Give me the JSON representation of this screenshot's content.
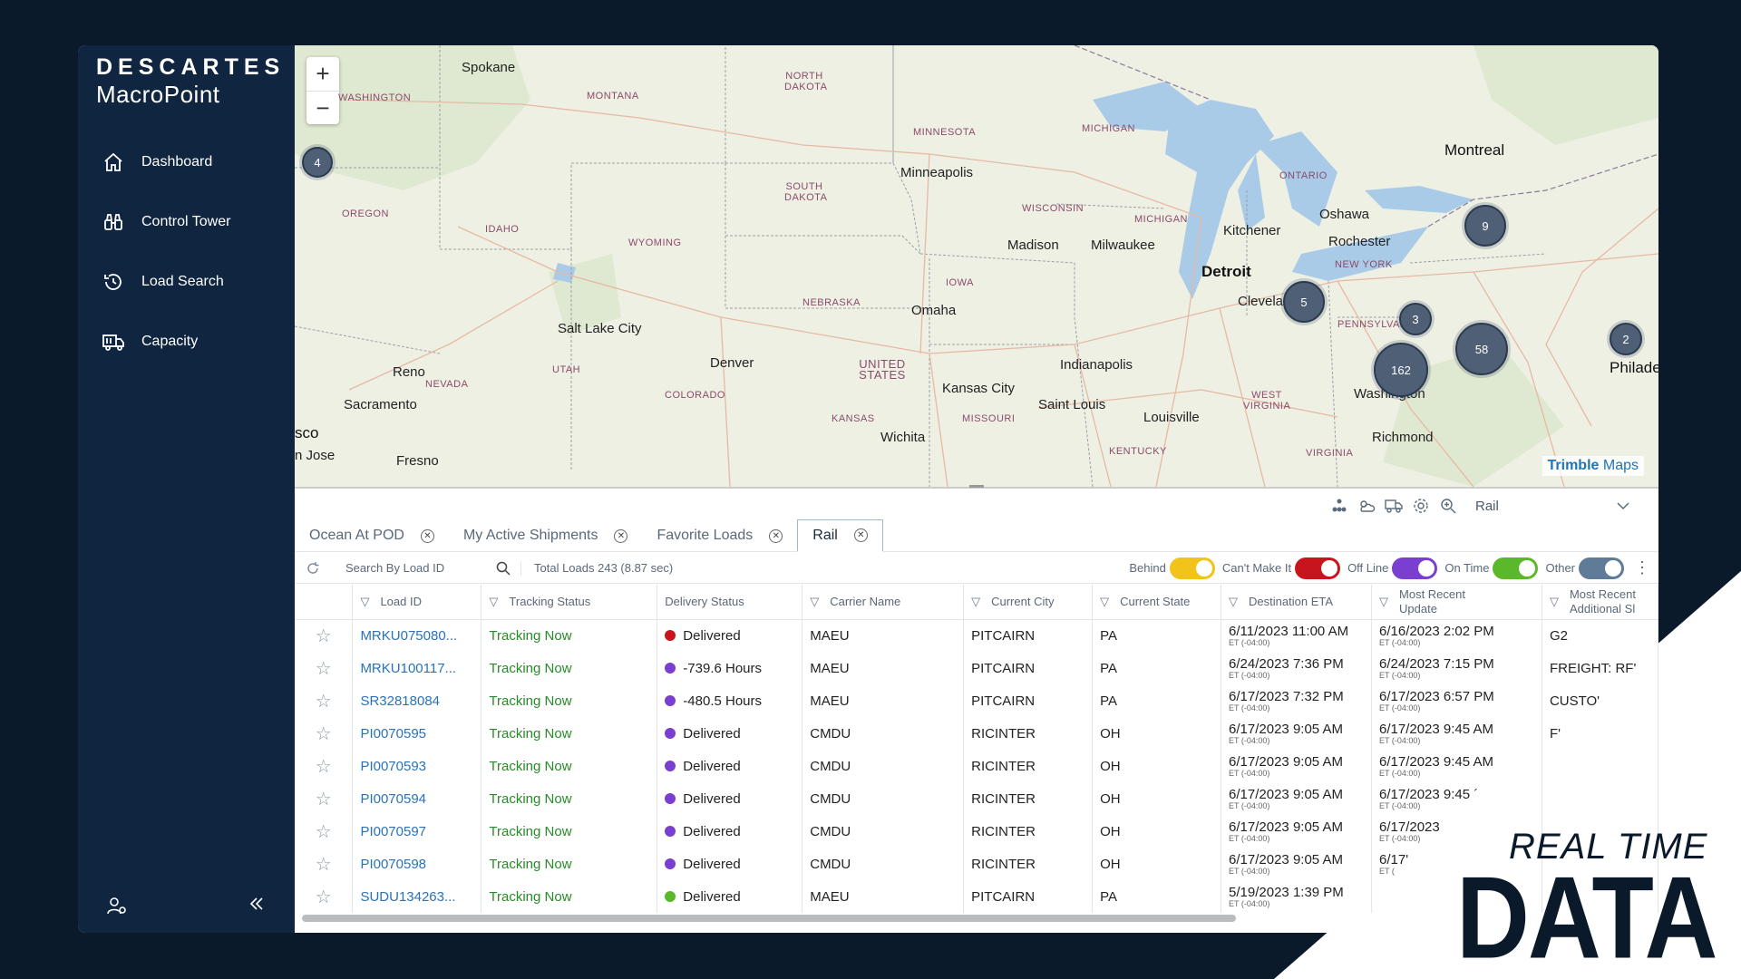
{
  "brand": {
    "name_top": "DESCARTES",
    "name_bottom": "MacroPoint"
  },
  "nav": [
    {
      "label": "Dashboard",
      "icon": "home-icon"
    },
    {
      "label": "Control Tower",
      "icon": "binoculars-icon"
    },
    {
      "label": "Load Search",
      "icon": "history-icon"
    },
    {
      "label": "Capacity",
      "icon": "truck-icon"
    }
  ],
  "map": {
    "zoom_in": "+",
    "zoom_out": "−",
    "attribution_brand": "Trimble",
    "attribution_suffix": " Maps",
    "state_labels": [
      "WASHINGTON",
      "MONTANA",
      "NORTH DAKOTA",
      "MINNESOTA",
      "SOUTH DAKOTA",
      "OREGON",
      "IDAHO",
      "WYOMING",
      "WISCONSIN",
      "MICHIGAN",
      "MICHIGAN",
      "ONTARIO",
      "NEBRASKA",
      "IOWA",
      "NEVADA",
      "UTAH",
      "COLORADO",
      "UNITED STATES",
      "KANSAS",
      "MISSOURI",
      "PENNSYLVANIA",
      "NEW YORK",
      "WEST VIRGINIA",
      "KENTUCKY",
      "VIRGINIA"
    ],
    "city_labels": [
      "Spokane",
      "Minneapolis",
      "Madison",
      "Milwaukee",
      "Detroit",
      "Kitchener",
      "Oshawa",
      "Rochester",
      "Montreal",
      "Cleveland",
      "Omaha",
      "Salt Lake City",
      "Denver",
      "Reno",
      "Sacramento",
      "Kansas City",
      "Indianapolis",
      "Saint Louis",
      "Louisville",
      "Wichita",
      "Washington",
      "Richmond",
      "Philade",
      "Fresno",
      "sco",
      "n Jose"
    ],
    "clusters": [
      "4",
      "9",
      "5",
      "3",
      "58",
      "162",
      "2"
    ]
  },
  "toolbar": {
    "view_label": "Rail"
  },
  "tabs": [
    {
      "label": "Ocean At POD",
      "active": false
    },
    {
      "label": "My Active Shipments",
      "active": false
    },
    {
      "label": "Favorite Loads",
      "active": false
    },
    {
      "label": "Rail",
      "active": true
    }
  ],
  "filters": {
    "search_placeholder": "Search By Load ID",
    "total_text": "Total Loads 243 (8.87 sec)",
    "toggles": [
      {
        "label": "Behind",
        "color": "#f2c318"
      },
      {
        "label": "Can't Make It",
        "color": "#c8141c"
      },
      {
        "label": "Off Line",
        "color": "#7a3fd0"
      },
      {
        "label": "On Time",
        "color": "#5ab82a"
      },
      {
        "label": "Other",
        "color": "#5f7b97"
      }
    ]
  },
  "columns": [
    "Load ID",
    "Tracking Status",
    "Delivery Status",
    "Carrier Name",
    "Current City",
    "Current State",
    "Destination ETA",
    "Most Recent Update",
    "Most Recent Additional Sl"
  ],
  "rows": [
    {
      "load_id": "MRKU075080...",
      "tracking": "Tracking Now",
      "delivery": "Delivered",
      "dot": "#c8141c",
      "carrier": "MAEU",
      "city": "PITCAIRN",
      "state": "PA",
      "eta": "6/11/2023  11:00 AM",
      "eta_tz": "ET (-04:00)",
      "update": "6/16/2023  2:02 PM",
      "update_tz": "ET (-04:00)",
      "extra": "G2"
    },
    {
      "load_id": "MRKU100117...",
      "tracking": "Tracking Now",
      "delivery": "-739.6 Hours",
      "dot": "#7a3fd0",
      "carrier": "MAEU",
      "city": "PITCAIRN",
      "state": "PA",
      "eta": "6/24/2023  7:36 PM",
      "eta_tz": "ET (-04:00)",
      "update": "6/24/2023  7:15 PM",
      "update_tz": "ET (-04:00)",
      "extra": "FREIGHT: RF'"
    },
    {
      "load_id": "SR32818084",
      "tracking": "Tracking Now",
      "delivery": "-480.5 Hours",
      "dot": "#7a3fd0",
      "carrier": "MAEU",
      "city": "PITCAIRN",
      "state": "PA",
      "eta": "6/17/2023  7:32 PM",
      "eta_tz": "ET (-04:00)",
      "update": "6/17/2023  6:57 PM",
      "update_tz": "ET (-04:00)",
      "extra": "CUSTO'"
    },
    {
      "load_id": "PI0070595",
      "tracking": "Tracking Now",
      "delivery": "Delivered",
      "dot": "#7a3fd0",
      "carrier": "CMDU",
      "city": "RICINTER",
      "state": "OH",
      "eta": "6/17/2023  9:05 AM",
      "eta_tz": "ET (-04:00)",
      "update": "6/17/2023  9:45 AM",
      "update_tz": "ET (-04:00)",
      "extra": "F'"
    },
    {
      "load_id": "PI0070593",
      "tracking": "Tracking Now",
      "delivery": "Delivered",
      "dot": "#7a3fd0",
      "carrier": "CMDU",
      "city": "RICINTER",
      "state": "OH",
      "eta": "6/17/2023  9:05 AM",
      "eta_tz": "ET (-04:00)",
      "update": "6/17/2023  9:45 AM",
      "update_tz": "ET (-04:00)",
      "extra": ""
    },
    {
      "load_id": "PI0070594",
      "tracking": "Tracking Now",
      "delivery": "Delivered",
      "dot": "#7a3fd0",
      "carrier": "CMDU",
      "city": "RICINTER",
      "state": "OH",
      "eta": "6/17/2023  9:05 AM",
      "eta_tz": "ET (-04:00)",
      "update": "6/17/2023  9:45 ´",
      "update_tz": "ET (-04:00)",
      "extra": ""
    },
    {
      "load_id": "PI0070597",
      "tracking": "Tracking Now",
      "delivery": "Delivered",
      "dot": "#7a3fd0",
      "carrier": "CMDU",
      "city": "RICINTER",
      "state": "OH",
      "eta": "6/17/2023  9:05 AM",
      "eta_tz": "ET (-04:00)",
      "update": "6/17/2023",
      "update_tz": "ET (-04:00)",
      "extra": ""
    },
    {
      "load_id": "PI0070598",
      "tracking": "Tracking Now",
      "delivery": "Delivered",
      "dot": "#7a3fd0",
      "carrier": "CMDU",
      "city": "RICINTER",
      "state": "OH",
      "eta": "6/17/2023  9:05 AM",
      "eta_tz": "ET (-04:00)",
      "update": "6/17'",
      "update_tz": "ET (",
      "extra": ""
    },
    {
      "load_id": "SUDU134263...",
      "tracking": "Tracking Now",
      "delivery": "Delivered",
      "dot": "#5ab82a",
      "carrier": "MAEU",
      "city": "PITCAIRN",
      "state": "PA",
      "eta": "5/19/2023  1:39 PM",
      "eta_tz": "ET (-04:00)",
      "update": "",
      "update_tz": "",
      "extra": ""
    }
  ],
  "slogan": {
    "line1": "REAL TIME",
    "line2": "DATA"
  }
}
